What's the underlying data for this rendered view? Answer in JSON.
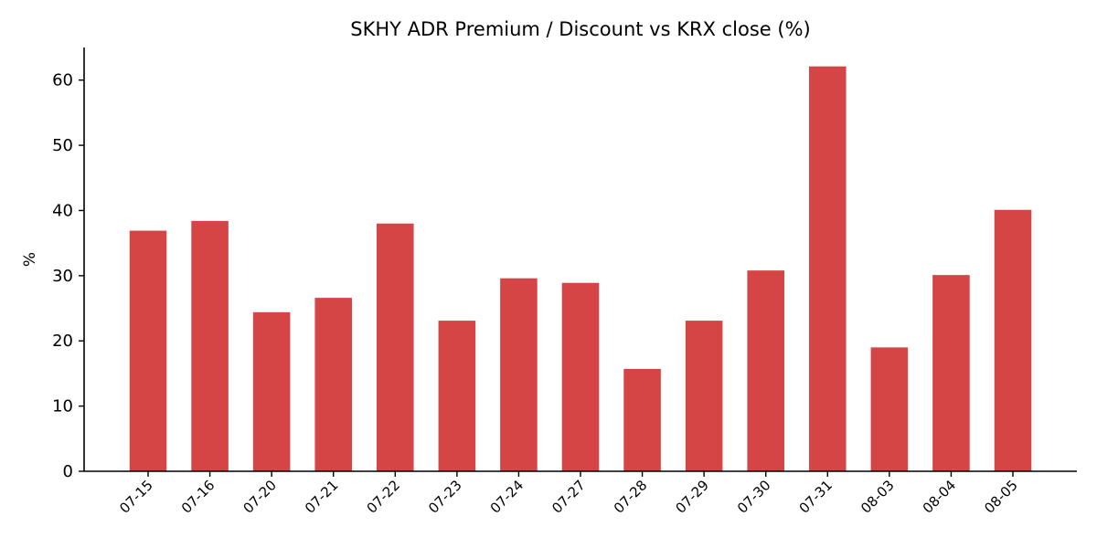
{
  "chart_data": {
    "type": "bar",
    "title": "SKHY ADR Premium / Discount vs KRX close (%)",
    "xlabel": "",
    "ylabel": "%",
    "ylim": [
      0,
      65
    ],
    "yticks": [
      0,
      10,
      20,
      30,
      40,
      50,
      60
    ],
    "categories": [
      "07-15",
      "07-16",
      "07-20",
      "07-21",
      "07-22",
      "07-23",
      "07-24",
      "07-27",
      "07-28",
      "07-29",
      "07-30",
      "07-31",
      "08-03",
      "08-04",
      "08-05"
    ],
    "values": [
      36.9,
      38.4,
      24.4,
      26.6,
      38.0,
      23.1,
      29.6,
      28.9,
      15.7,
      23.1,
      30.8,
      62.1,
      19.0,
      30.1,
      40.1
    ],
    "bar_color": "#d64545",
    "grid": false,
    "legend": "none"
  }
}
